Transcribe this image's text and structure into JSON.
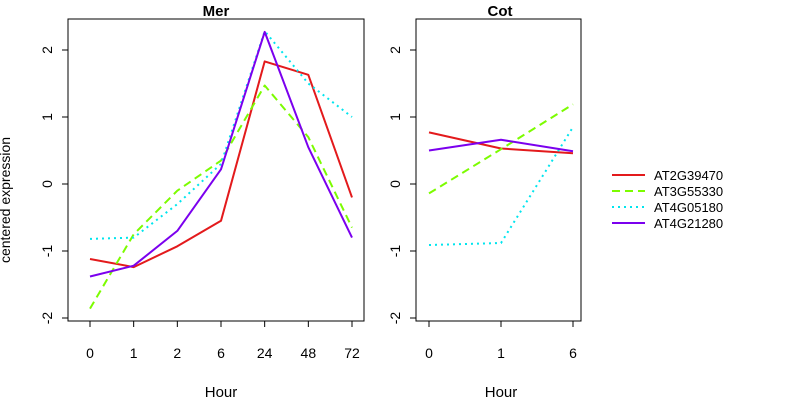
{
  "shared": {
    "ylabel": "centered expression",
    "legend_placement": "right",
    "series_styles": [
      {
        "name": "AT2G39470",
        "color": "#e31a1c",
        "dash": "solid"
      },
      {
        "name": "AT3G55330",
        "color": "#7cfc00",
        "dash": "dashed"
      },
      {
        "name": "AT4G05180",
        "color": "#00e5ee",
        "dash": "dotted"
      },
      {
        "name": "AT4G21280",
        "color": "#7b00ee",
        "dash": "solid"
      }
    ]
  },
  "chart_data": [
    {
      "type": "line",
      "title": "Mer",
      "xlabel": "Hour",
      "ylabel": "centered expression",
      "categories": [
        "0",
        "1",
        "2",
        "6",
        "24",
        "48",
        "72"
      ],
      "ylim": [
        -2,
        2.5
      ],
      "yticks": [
        -2,
        -1,
        0,
        1,
        2
      ],
      "grid": false,
      "series": [
        {
          "name": "AT2G39470",
          "values": [
            -1.12,
            -1.24,
            -0.93,
            -0.55,
            1.83,
            1.63,
            -0.2
          ]
        },
        {
          "name": "AT3G55330",
          "values": [
            -1.86,
            -0.75,
            -0.1,
            0.35,
            1.47,
            0.7,
            -0.65
          ]
        },
        {
          "name": "AT4G05180",
          "values": [
            -0.82,
            -0.8,
            -0.3,
            0.3,
            2.28,
            1.5,
            1.0
          ]
        },
        {
          "name": "AT4G21280",
          "values": [
            -1.38,
            -1.22,
            -0.7,
            0.22,
            2.27,
            0.55,
            -0.8
          ]
        }
      ]
    },
    {
      "type": "line",
      "title": "Cot",
      "xlabel": "Hour",
      "ylabel": "",
      "categories": [
        "0",
        "1",
        "6"
      ],
      "ylim": [
        -2,
        2.5
      ],
      "yticks": [
        -2,
        -1,
        0,
        1,
        2
      ],
      "grid": false,
      "series": [
        {
          "name": "AT2G39470",
          "values": [
            0.77,
            0.53,
            0.46
          ]
        },
        {
          "name": "AT3G55330",
          "values": [
            -0.14,
            0.52,
            1.19
          ]
        },
        {
          "name": "AT4G05180",
          "values": [
            -0.91,
            -0.88,
            0.85
          ]
        },
        {
          "name": "AT4G21280",
          "values": [
            0.5,
            0.66,
            0.49
          ]
        }
      ]
    }
  ]
}
